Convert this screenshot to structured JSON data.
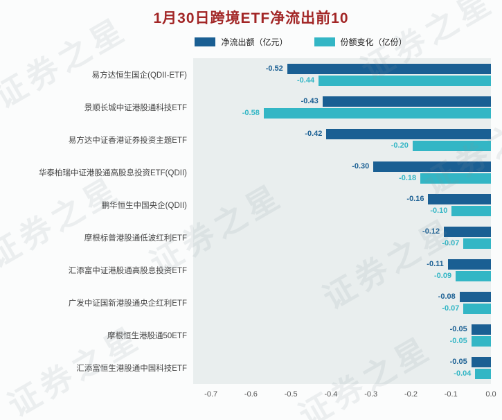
{
  "title": "1月30日跨境ETF净流出前10",
  "watermark": "证券之星",
  "legend": [
    {
      "label": "净流出额（亿元）",
      "color": "#1a5f93"
    },
    {
      "label": "份额变化（亿份）",
      "color": "#33b6c5"
    }
  ],
  "colors": {
    "title": "#a22626",
    "plot_background": "#e9eeee",
    "page_background": "#fbfcfc",
    "axis_text": "#555555",
    "category_text": "#444444",
    "net_outflow_bar": "#1a5f93",
    "share_change_bar": "#33b6c5"
  },
  "chart_data": {
    "type": "bar",
    "orientation": "horizontal",
    "title": "1月30日跨境ETF净流出前10",
    "categories": [
      "易方达恒生国企(QDII-ETF)",
      "景顺长城中证港股通科技ETF",
      "易方达中证香港证券投资主题ETF",
      "华泰柏瑞中证港股通高股息投资ETF(QDII)",
      "鹏华恒生中国央企(QDII)",
      "摩根标普港股通低波红利ETF",
      "汇添富中证港股通高股息投资ETF",
      "广发中证国新港股通央企红利ETF",
      "摩根恒生港股通50ETF",
      "汇添富恒生港股通中国科技ETF"
    ],
    "series": [
      {
        "name": "净流出额（亿元）",
        "color": "#1a5f93",
        "values": [
          -0.52,
          -0.43,
          -0.42,
          -0.3,
          -0.16,
          -0.12,
          -0.11,
          -0.08,
          -0.05,
          -0.05
        ]
      },
      {
        "name": "份额变化（亿份）",
        "color": "#33b6c5",
        "values": [
          -0.44,
          -0.58,
          -0.2,
          -0.18,
          -0.1,
          -0.07,
          -0.09,
          -0.07,
          -0.05,
          -0.04
        ]
      }
    ],
    "xlim": [
      -0.76,
      0
    ],
    "xticks": [
      {
        "value": -0.7,
        "label": "-0.7"
      },
      {
        "value": -0.6,
        "label": "-0.6"
      },
      {
        "value": -0.5,
        "label": "-0.5"
      },
      {
        "value": -0.4,
        "label": "-0.4"
      },
      {
        "value": -0.3,
        "label": "-0.3"
      },
      {
        "value": -0.2,
        "label": "-0.2"
      },
      {
        "value": -0.1,
        "label": "-0.1"
      },
      {
        "value": 0.0,
        "label": "0.0"
      }
    ],
    "legend_position": "top",
    "grid": false,
    "value_labels": "two-decimals"
  }
}
